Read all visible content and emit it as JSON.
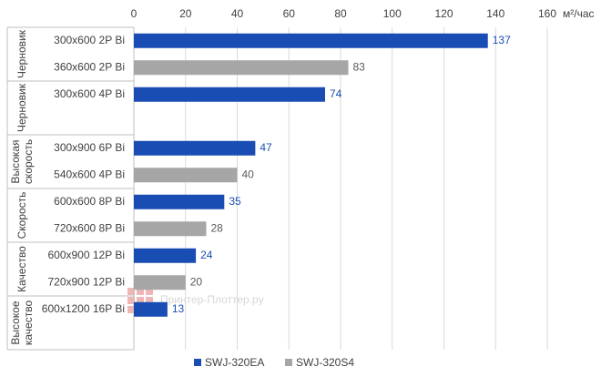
{
  "chart_data": {
    "type": "bar",
    "x_unit": "м²/час",
    "watermark": "Принтер-Плоттер.ру",
    "groups": [
      {
        "name": "Черновик",
        "categories": [
          "300x600 2P Bi",
          "360x600 2P Bi"
        ]
      },
      {
        "name": "Черновик",
        "categories": [
          "300x600 4P Bi",
          null
        ]
      },
      {
        "name": "Высокая скорость",
        "categories": [
          "300x900 6P Bi",
          "540x600 4P Bi"
        ]
      },
      {
        "name": "Скорость",
        "categories": [
          "600x600 8P Bi",
          "720x600 8P Bi"
        ]
      },
      {
        "name": "Качество",
        "categories": [
          "600x900 12P Bi",
          "720x900 12P Bi"
        ]
      },
      {
        "name": "Высокое качество",
        "categories": [
          "600x1200 16P Bi",
          null
        ]
      }
    ],
    "series": [
      {
        "name": "SWJ-320EA",
        "color": "#1a4db3",
        "label_color": "#1a4db3",
        "values": [
          137,
          null,
          74,
          null,
          47,
          null,
          35,
          null,
          24,
          null,
          13,
          null
        ]
      },
      {
        "name": "SWJ-320S4",
        "color": "#a6a6a6",
        "label_color": "#595959",
        "values": [
          null,
          83,
          null,
          null,
          null,
          40,
          null,
          28,
          null,
          20,
          null,
          null
        ]
      }
    ],
    "xlim": [
      0,
      160
    ],
    "xticks": [
      0,
      20,
      40,
      60,
      80,
      100,
      120,
      140,
      160
    ],
    "grid": true
  }
}
